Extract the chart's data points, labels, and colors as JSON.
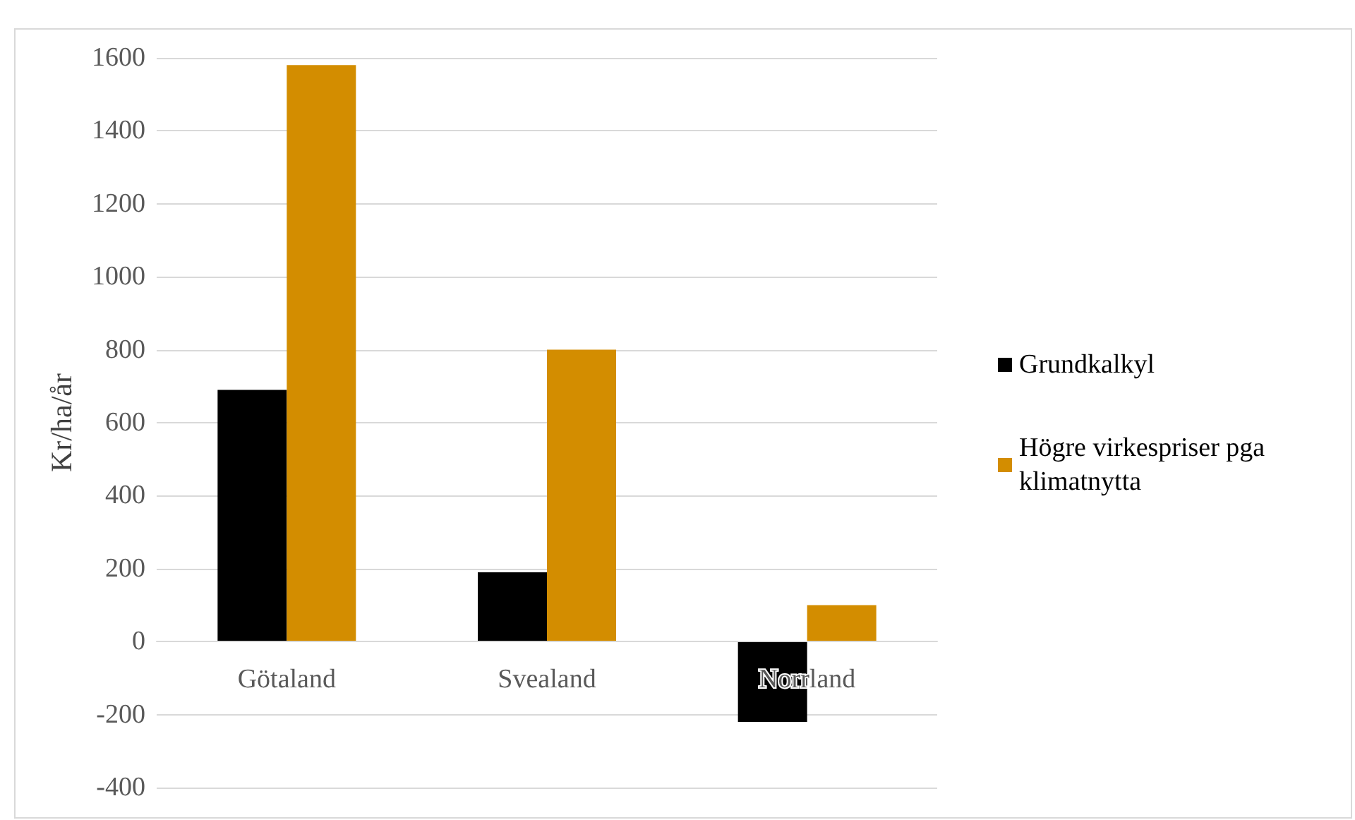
{
  "chart_data": {
    "type": "bar",
    "ylabel": "Kr/ha/år",
    "categories": [
      "Götaland",
      "Svealand",
      "Norrland"
    ],
    "series": [
      {
        "name": "Grundkalkyl",
        "color": "#000000",
        "values": [
          690,
          190,
          -220
        ]
      },
      {
        "name": "Högre virkespriser pga klimatnytta",
        "color": "#d38d00",
        "values": [
          1580,
          800,
          100
        ]
      }
    ],
    "ylim": [
      -400,
      1600
    ],
    "yticks": [
      -400,
      -200,
      0,
      200,
      400,
      600,
      800,
      1000,
      1200,
      1400,
      1600
    ],
    "grid": "y",
    "legend": "right"
  }
}
